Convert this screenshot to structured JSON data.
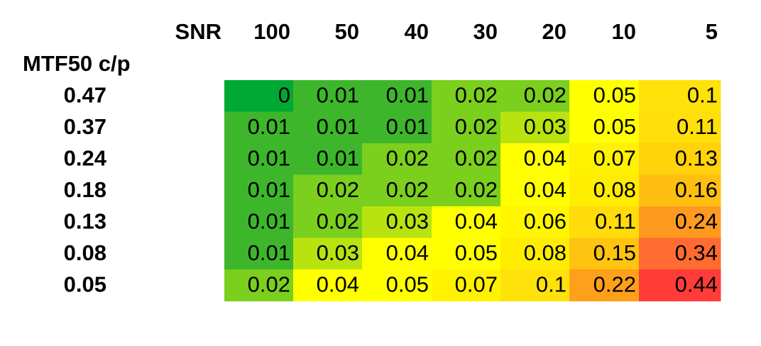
{
  "header": {
    "corner": "SNR",
    "row_title": "MTF50 c/p",
    "columns": [
      100,
      50,
      40,
      30,
      20,
      10,
      5
    ]
  },
  "rows": [
    {
      "label": 0.47,
      "values": [
        0,
        0.01,
        0.01,
        0.02,
        0.02,
        0.05,
        0.1
      ],
      "colors": [
        "#00a933",
        "#3db62c",
        "#3db62c",
        "#7bcf1d",
        "#7bcf1d",
        "#ffff00",
        "#ffe20a"
      ]
    },
    {
      "label": 0.37,
      "values": [
        0.01,
        0.01,
        0.01,
        0.02,
        0.03,
        0.05,
        0.11
      ],
      "colors": [
        "#3db62c",
        "#3db62c",
        "#3db62c",
        "#7bcf1d",
        "#b9e30e",
        "#ffff00",
        "#ffdf0a"
      ]
    },
    {
      "label": 0.24,
      "values": [
        0.01,
        0.01,
        0.02,
        0.02,
        0.04,
        0.07,
        0.13
      ],
      "colors": [
        "#3db62c",
        "#3db62c",
        "#7bcf1d",
        "#7bcf1d",
        "#ffff00",
        "#fff200",
        "#ffd20a"
      ]
    },
    {
      "label": 0.18,
      "values": [
        0.01,
        0.02,
        0.02,
        0.02,
        0.04,
        0.08,
        0.16
      ],
      "colors": [
        "#3db62c",
        "#7bcf1d",
        "#7bcf1d",
        "#7bcf1d",
        "#ffff00",
        "#ffed00",
        "#ffbf10"
      ]
    },
    {
      "label": 0.13,
      "values": [
        0.01,
        0.02,
        0.03,
        0.04,
        0.06,
        0.11,
        0.24
      ],
      "colors": [
        "#3db62c",
        "#7bcf1d",
        "#b9e30e",
        "#ffff00",
        "#fff600",
        "#ffdc0a",
        "#ff9a20"
      ]
    },
    {
      "label": 0.08,
      "values": [
        0.01,
        0.03,
        0.04,
        0.05,
        0.08,
        0.15,
        0.34
      ],
      "colors": [
        "#3db62c",
        "#b9e30e",
        "#ffff00",
        "#ffff00",
        "#ffed00",
        "#ffc410",
        "#ff6b30"
      ]
    },
    {
      "label": 0.05,
      "values": [
        0.02,
        0.04,
        0.05,
        0.07,
        0.1,
        0.22,
        0.44
      ],
      "colors": [
        "#7bcf1d",
        "#ffff00",
        "#ffff00",
        "#fff200",
        "#ffe20a",
        "#ffa01a",
        "#ff3c38"
      ]
    }
  ]
}
